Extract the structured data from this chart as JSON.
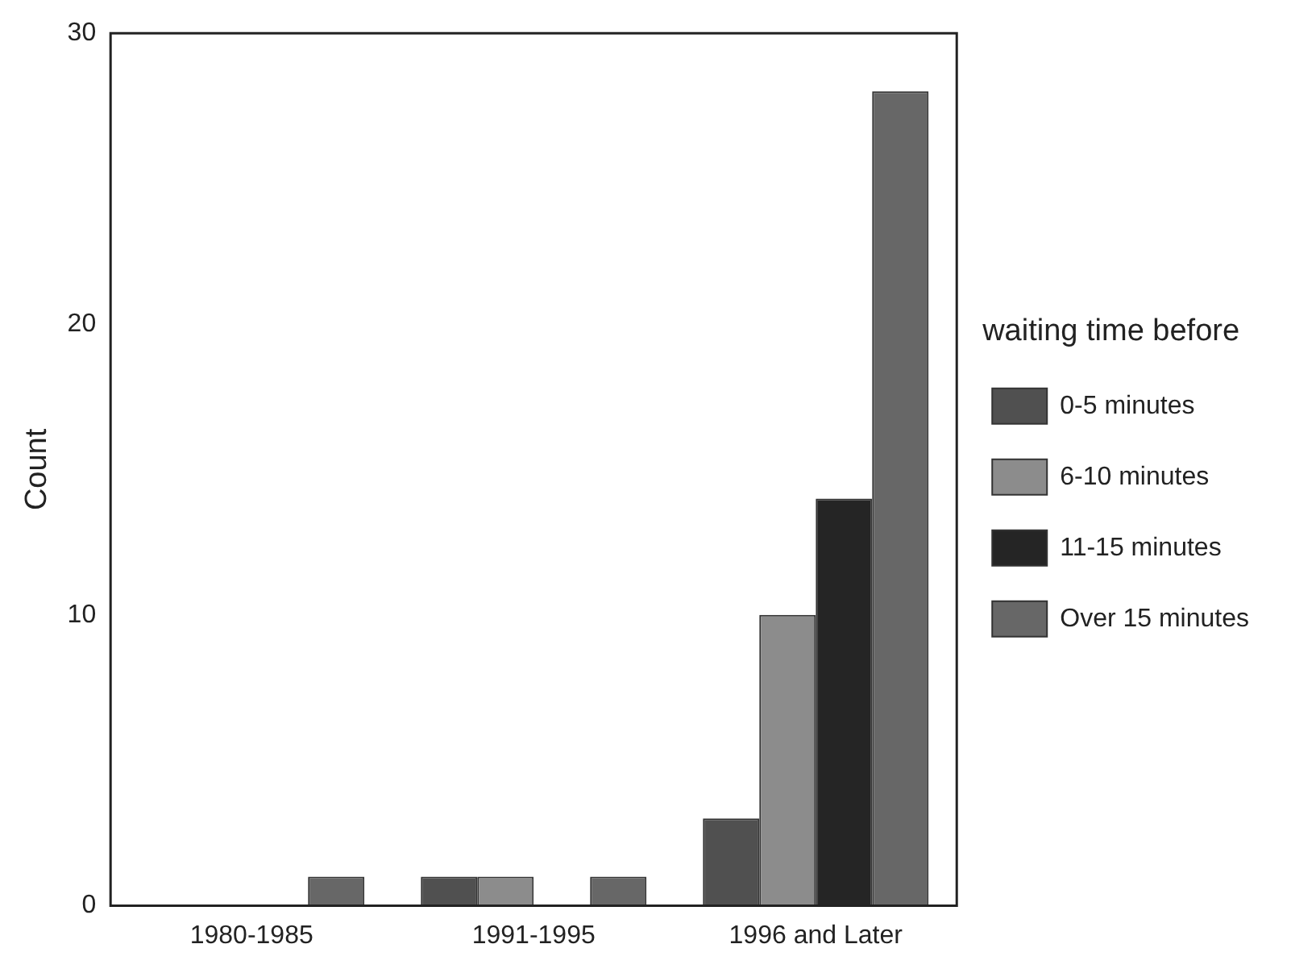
{
  "chart_data": {
    "type": "bar",
    "ylabel": "Count",
    "legend_title": "waiting time before",
    "categories": [
      "1980-1985",
      "1991-1995",
      "1996 and Later"
    ],
    "series": [
      {
        "name": "0-5 minutes",
        "color": "#505050",
        "values": [
          0,
          1,
          3
        ]
      },
      {
        "name": "6-10 minutes",
        "color": "#8c8c8c",
        "values": [
          0,
          1,
          10
        ]
      },
      {
        "name": "11-15 minutes",
        "color": "#252525",
        "values": [
          0,
          0,
          14
        ]
      },
      {
        "name": "Over 15 minutes",
        "color": "#676767",
        "values": [
          1,
          1,
          28
        ]
      }
    ],
    "ylim": [
      0,
      30
    ],
    "yticks": [
      0,
      10,
      20,
      30
    ],
    "grid": false,
    "legend": "right"
  }
}
